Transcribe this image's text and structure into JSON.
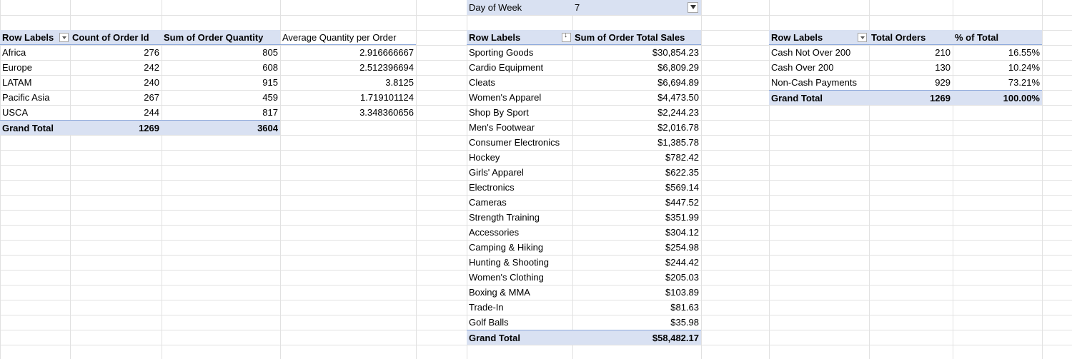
{
  "colors": {
    "header_fill": "#d9e1f2",
    "grid_line": "#e1e1e1",
    "header_border": "#8ea9db"
  },
  "filter": {
    "label": "Day of Week",
    "value": "7"
  },
  "pivot_region": {
    "headers": [
      "Row Labels",
      "Count of Order Id",
      "Sum of Order Quantity",
      "Average Quantity per Order"
    ],
    "rows": [
      [
        "Africa",
        "276",
        "805",
        "2.916666667"
      ],
      [
        "Europe",
        "242",
        "608",
        "2.512396694"
      ],
      [
        "LATAM",
        "240",
        "915",
        "3.8125"
      ],
      [
        "Pacific Asia",
        "267",
        "459",
        "1.719101124"
      ],
      [
        "USCA",
        "244",
        "817",
        "3.348360656"
      ]
    ],
    "total": [
      "Grand Total",
      "1269",
      "3604"
    ]
  },
  "pivot_category": {
    "headers": [
      "Row Labels",
      "Sum of Order Total Sales"
    ],
    "rows": [
      [
        "Sporting Goods",
        "$30,854.23"
      ],
      [
        "Cardio Equipment",
        "$6,809.29"
      ],
      [
        "Cleats",
        "$6,694.89"
      ],
      [
        "Women's Apparel",
        "$4,473.50"
      ],
      [
        "Shop By Sport",
        "$2,244.23"
      ],
      [
        "Men's Footwear",
        "$2,016.78"
      ],
      [
        "Consumer Electronics",
        "$1,385.78"
      ],
      [
        "Hockey",
        "$782.42"
      ],
      [
        "Girls' Apparel",
        "$622.35"
      ],
      [
        "Electronics",
        "$569.14"
      ],
      [
        "Cameras",
        "$447.52"
      ],
      [
        "Strength Training",
        "$351.99"
      ],
      [
        "Accessories",
        "$304.12"
      ],
      [
        "Camping & Hiking",
        "$254.98"
      ],
      [
        "Hunting & Shooting",
        "$244.42"
      ],
      [
        "Women's Clothing",
        "$205.03"
      ],
      [
        "Boxing & MMA",
        "$103.89"
      ],
      [
        "Trade-In",
        "$81.63"
      ],
      [
        "Golf Balls",
        "$35.98"
      ]
    ],
    "total": [
      "Grand Total",
      "$58,482.17"
    ]
  },
  "pivot_payment": {
    "headers": [
      "Row Labels",
      "Total Orders",
      "% of Total"
    ],
    "rows": [
      [
        "Cash Not Over 200",
        "210",
        "16.55%"
      ],
      [
        "Cash Over 200",
        "130",
        "10.24%"
      ],
      [
        "Non-Cash Payments",
        "929",
        "73.21%"
      ]
    ],
    "total": [
      "Grand Total",
      "1269",
      "100.00%"
    ]
  }
}
